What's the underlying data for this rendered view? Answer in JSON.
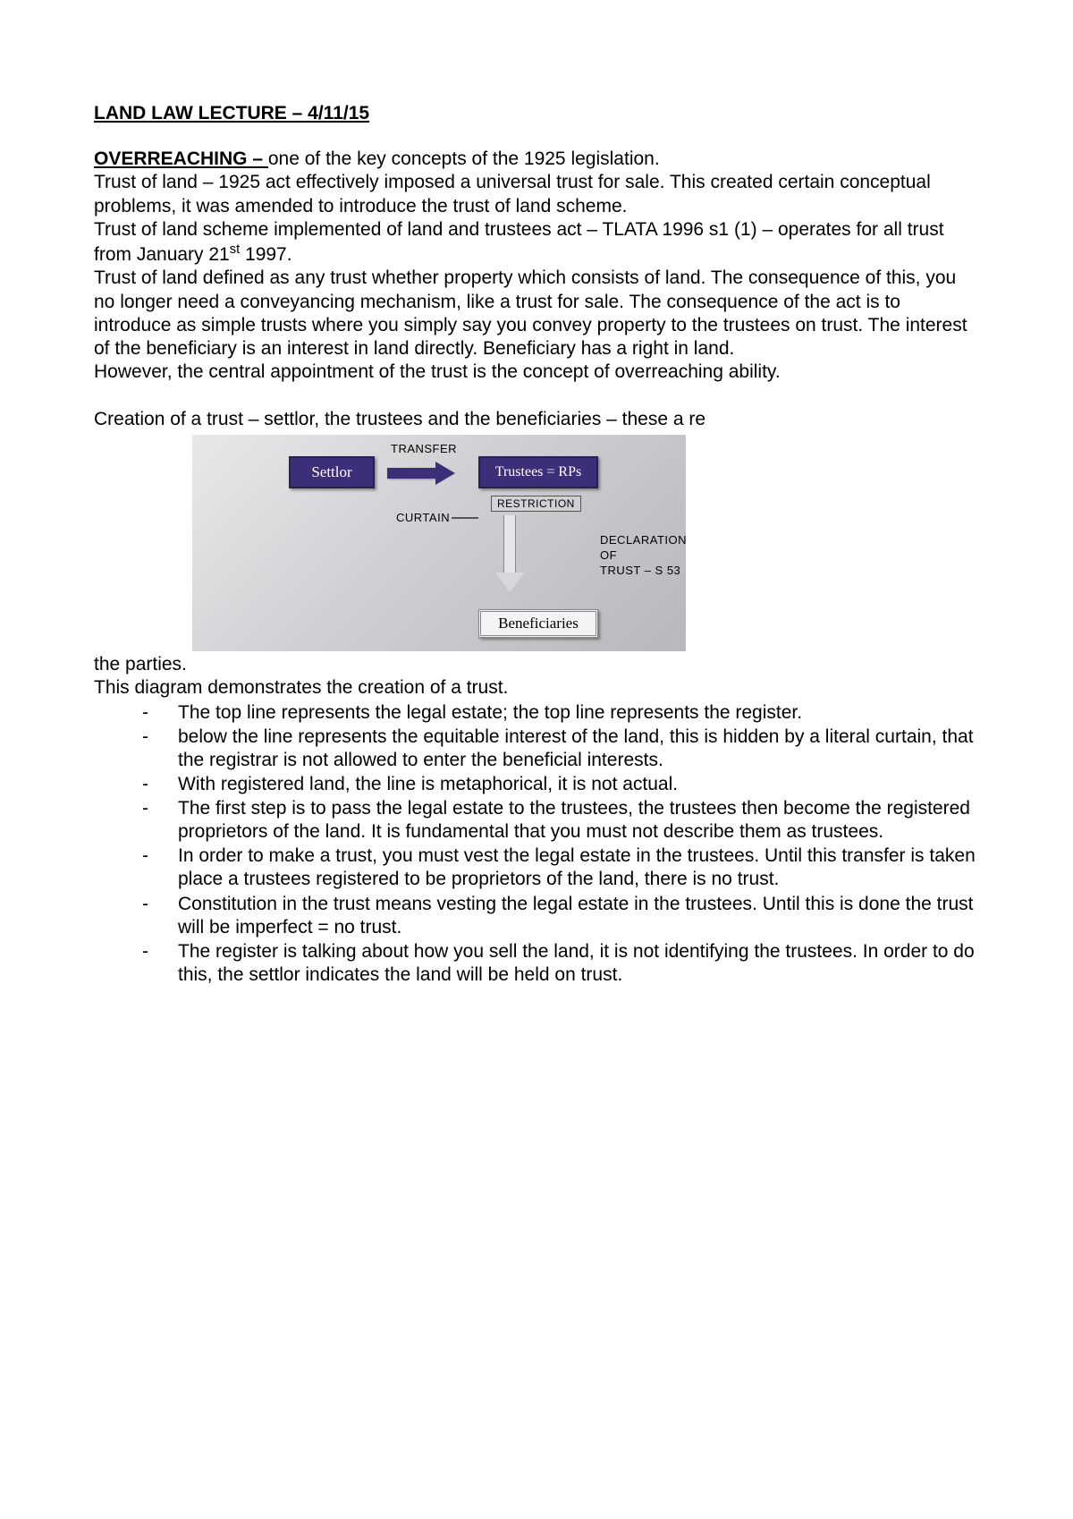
{
  "title": "LAND LAW LECTURE – 4/11/15",
  "overreaching_head": "OVERREACHING – ",
  "overreaching_tail": "one of the key concepts of the 1925 legislation.",
  "p1": "Trust of land – 1925 act effectively imposed a universal trust for sale. This created certain conceptual problems, it was amended to introduce the trust of land scheme.",
  "p2a": "Trust of land scheme implemented of land and trustees act – TLATA 1996 s1 (1) – operates for all trust from January 21",
  "p2sup": "st",
  "p2b": " 1997.",
  "p3": "Trust of land defined as any trust whether property which consists of land. The consequence of this, you no longer need a conveyancing mechanism, like a trust for sale. The consequence of the act is to introduce as simple trusts where you simply say you convey property to the trustees on trust. The interest of the beneficiary is an interest in land directly. Beneficiary has a right in land.",
  "p4": "However, the central appointment of the trust is the concept of overreaching ability.",
  "p5": "Creation of a trust – settlor, the trustees and the beneficiaries – these a re",
  "diagram": {
    "settlor": "Settlor",
    "trustees": "Trustees  = RPs",
    "beneficiaries": "Beneficiaries",
    "transfer": "TRANSFER",
    "curtain": "CURTAIN",
    "restriction": "RESTRICTION",
    "declaration": "DECLARATION OF\nTRUST – S 53",
    "bg_light": "#e8e8ea",
    "bg_dark": "#b8b8bc",
    "box_fill": "#3d2e7a",
    "box_border": "#2a2050"
  },
  "p6": "the parties.",
  "p7": "This diagram demonstrates the creation of a trust.",
  "bullets": [
    "The top line represents the legal estate; the top line represents the register.",
    " below the line represents the equitable interest of the land, this is hidden by a literal curtain, that the registrar is not allowed to enter the beneficial interests.",
    "With registered land, the line is metaphorical, it is not actual.",
    "The first step is to pass the legal estate to the trustees, the trustees then become the registered proprietors of the land. It is fundamental that you must not describe them as trustees.",
    "In order to make a trust, you must vest the legal estate in the trustees. Until this transfer is taken place a trustees registered to be proprietors of the land, there is no trust.",
    "Constitution in the trust means vesting the legal estate in the trustees. Until this is done the trust will be imperfect = no trust.",
    "The register is talking about how you sell the land, it is not identifying the trustees. In order to do this, the settlor indicates the land will be held on trust."
  ]
}
